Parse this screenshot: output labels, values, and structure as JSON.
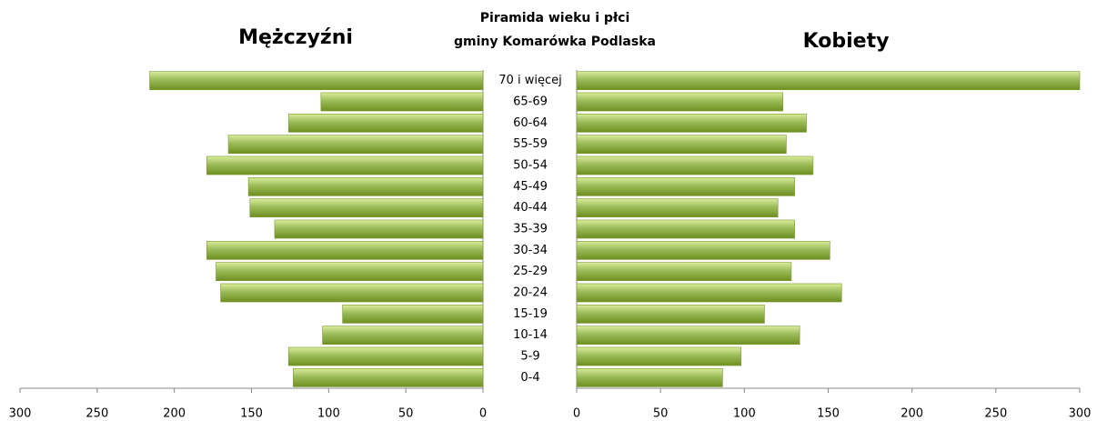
{
  "chart_data": {
    "type": "pyramid",
    "title": "Piramida wieku i płci",
    "subtitle": "gminy Komarówka Podlaska",
    "categories": [
      "70 i więcej",
      "65-69",
      "60-64",
      "55-59",
      "50-54",
      "45-49",
      "40-44",
      "35-39",
      "30-34",
      "25-29",
      "20-24",
      "15-19",
      "10-14",
      "5-9",
      "0-4"
    ],
    "series": [
      {
        "name": "Mężczyźni",
        "color": "#9bbb59",
        "values": [
          216,
          105,
          126,
          165,
          179,
          152,
          151,
          135,
          179,
          173,
          170,
          91,
          104,
          126,
          123
        ]
      },
      {
        "name": "Kobiety",
        "color": "#9bbb59",
        "values": [
          300,
          123,
          137,
          125,
          141,
          130,
          120,
          130,
          151,
          128,
          158,
          112,
          133,
          98,
          87
        ]
      }
    ],
    "xlim": [
      0,
      300
    ],
    "xticks": [
      0,
      50,
      100,
      150,
      200,
      250,
      300
    ]
  }
}
